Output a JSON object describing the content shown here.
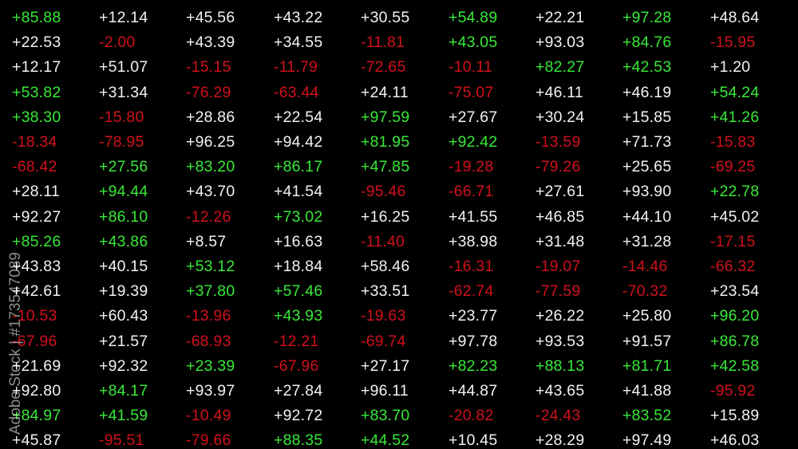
{
  "colors": {
    "white": "#f2f2f2",
    "green": "#38e838",
    "red": "#d0101c",
    "background": "#000000"
  },
  "watermark": "Adobe Stock | #173547089",
  "rows": [
    [
      {
        "value": "+85.88",
        "color": "green"
      },
      {
        "value": "+12.14",
        "color": "white"
      },
      {
        "value": "+45.56",
        "color": "white"
      },
      {
        "value": "+43.22",
        "color": "white"
      },
      {
        "value": "+30.55",
        "color": "white"
      },
      {
        "value": "+54.89",
        "color": "green"
      },
      {
        "value": "+22.21",
        "color": "white"
      },
      {
        "value": "+97.28",
        "color": "green"
      },
      {
        "value": "+48.64",
        "color": "white"
      }
    ],
    [
      {
        "value": "+22.53",
        "color": "white"
      },
      {
        "value": "-2.00",
        "color": "red"
      },
      {
        "value": "+43.39",
        "color": "white"
      },
      {
        "value": "+34.55",
        "color": "white"
      },
      {
        "value": "-11.81",
        "color": "red"
      },
      {
        "value": "+43.05",
        "color": "green"
      },
      {
        "value": "+93.03",
        "color": "white"
      },
      {
        "value": "+84.76",
        "color": "green"
      },
      {
        "value": "-15.95",
        "color": "red"
      }
    ],
    [
      {
        "value": "+12.17",
        "color": "white"
      },
      {
        "value": "+51.07",
        "color": "white"
      },
      {
        "value": "-15.15",
        "color": "red"
      },
      {
        "value": "-11.79",
        "color": "red"
      },
      {
        "value": "-72.65",
        "color": "red"
      },
      {
        "value": "-10.11",
        "color": "red"
      },
      {
        "value": "+82.27",
        "color": "green"
      },
      {
        "value": "+42.53",
        "color": "green"
      },
      {
        "value": "+1.20",
        "color": "white"
      }
    ],
    [
      {
        "value": "+53.82",
        "color": "green"
      },
      {
        "value": "+31.34",
        "color": "white"
      },
      {
        "value": "-76.29",
        "color": "red"
      },
      {
        "value": "-63.44",
        "color": "red"
      },
      {
        "value": "+24.11",
        "color": "white"
      },
      {
        "value": "-75.07",
        "color": "red"
      },
      {
        "value": "+46.11",
        "color": "white"
      },
      {
        "value": "+46.19",
        "color": "white"
      },
      {
        "value": "+54.24",
        "color": "green"
      }
    ],
    [
      {
        "value": "+38.30",
        "color": "green"
      },
      {
        "value": "-15.80",
        "color": "red"
      },
      {
        "value": "+28.86",
        "color": "white"
      },
      {
        "value": "+22.54",
        "color": "white"
      },
      {
        "value": "+97.59",
        "color": "green"
      },
      {
        "value": "+27.67",
        "color": "white"
      },
      {
        "value": "+30.24",
        "color": "white"
      },
      {
        "value": "+15.85",
        "color": "white"
      },
      {
        "value": "+41.26",
        "color": "green"
      }
    ],
    [
      {
        "value": "-18.34",
        "color": "red"
      },
      {
        "value": "-78.95",
        "color": "red"
      },
      {
        "value": "+96.25",
        "color": "white"
      },
      {
        "value": "+94.42",
        "color": "white"
      },
      {
        "value": "+81.95",
        "color": "green"
      },
      {
        "value": "+92.42",
        "color": "green"
      },
      {
        "value": "-13.59",
        "color": "red"
      },
      {
        "value": "+71.73",
        "color": "white"
      },
      {
        "value": "-15.83",
        "color": "red"
      }
    ],
    [
      {
        "value": "-68.42",
        "color": "red"
      },
      {
        "value": "+27.56",
        "color": "green"
      },
      {
        "value": "+83.20",
        "color": "green"
      },
      {
        "value": "+86.17",
        "color": "green"
      },
      {
        "value": "+47.85",
        "color": "green"
      },
      {
        "value": "-19.28",
        "color": "red"
      },
      {
        "value": "-79.26",
        "color": "red"
      },
      {
        "value": "+25.65",
        "color": "white"
      },
      {
        "value": "-69.25",
        "color": "red"
      }
    ],
    [
      {
        "value": "+28.11",
        "color": "white"
      },
      {
        "value": "+94.44",
        "color": "green"
      },
      {
        "value": "+43.70",
        "color": "white"
      },
      {
        "value": "+41.54",
        "color": "white"
      },
      {
        "value": "-95.46",
        "color": "red"
      },
      {
        "value": "-66.71",
        "color": "red"
      },
      {
        "value": "+27.61",
        "color": "white"
      },
      {
        "value": "+93.90",
        "color": "white"
      },
      {
        "value": "+22.78",
        "color": "green"
      }
    ],
    [
      {
        "value": "+92.27",
        "color": "white"
      },
      {
        "value": "+86.10",
        "color": "green"
      },
      {
        "value": "-12.26",
        "color": "red"
      },
      {
        "value": "+73.02",
        "color": "green"
      },
      {
        "value": "+16.25",
        "color": "white"
      },
      {
        "value": "+41.55",
        "color": "white"
      },
      {
        "value": "+46.85",
        "color": "white"
      },
      {
        "value": "+44.10",
        "color": "white"
      },
      {
        "value": "+45.02",
        "color": "white"
      }
    ],
    [
      {
        "value": "+85.26",
        "color": "green"
      },
      {
        "value": "+43.86",
        "color": "green"
      },
      {
        "value": "+8.57",
        "color": "white"
      },
      {
        "value": "+16.63",
        "color": "white"
      },
      {
        "value": "-11.40",
        "color": "red"
      },
      {
        "value": "+38.98",
        "color": "white"
      },
      {
        "value": "+31.48",
        "color": "white"
      },
      {
        "value": "+31.28",
        "color": "white"
      },
      {
        "value": "-17.15",
        "color": "red"
      }
    ],
    [
      {
        "value": "+43.83",
        "color": "white"
      },
      {
        "value": "+40.15",
        "color": "white"
      },
      {
        "value": "+53.12",
        "color": "green"
      },
      {
        "value": "+18.84",
        "color": "white"
      },
      {
        "value": "+58.46",
        "color": "white"
      },
      {
        "value": "-16.31",
        "color": "red"
      },
      {
        "value": "-19.07",
        "color": "red"
      },
      {
        "value": "-14.46",
        "color": "red"
      },
      {
        "value": "-66.32",
        "color": "red"
      }
    ],
    [
      {
        "value": "+42.61",
        "color": "white"
      },
      {
        "value": "+19.39",
        "color": "white"
      },
      {
        "value": "+37.80",
        "color": "green"
      },
      {
        "value": "+57.46",
        "color": "green"
      },
      {
        "value": "+33.51",
        "color": "white"
      },
      {
        "value": "-62.74",
        "color": "red"
      },
      {
        "value": "-77.59",
        "color": "red"
      },
      {
        "value": "-70.32",
        "color": "red"
      },
      {
        "value": "+23.54",
        "color": "white"
      }
    ],
    [
      {
        "value": "-10.53",
        "color": "red"
      },
      {
        "value": "+60.43",
        "color": "white"
      },
      {
        "value": "-13.96",
        "color": "red"
      },
      {
        "value": "+43.93",
        "color": "green"
      },
      {
        "value": "-19.63",
        "color": "red"
      },
      {
        "value": "+23.77",
        "color": "white"
      },
      {
        "value": "+26.22",
        "color": "white"
      },
      {
        "value": "+25.80",
        "color": "white"
      },
      {
        "value": "+96.20",
        "color": "green"
      }
    ],
    [
      {
        "value": "-67.96",
        "color": "red"
      },
      {
        "value": "+21.57",
        "color": "white"
      },
      {
        "value": "-68.93",
        "color": "red"
      },
      {
        "value": "-12.21",
        "color": "red"
      },
      {
        "value": "-69.74",
        "color": "red"
      },
      {
        "value": "+97.78",
        "color": "white"
      },
      {
        "value": "+93.53",
        "color": "white"
      },
      {
        "value": "+91.57",
        "color": "white"
      },
      {
        "value": "+86.78",
        "color": "green"
      }
    ],
    [
      {
        "value": "+21.69",
        "color": "white"
      },
      {
        "value": "+92.32",
        "color": "white"
      },
      {
        "value": "+23.39",
        "color": "green"
      },
      {
        "value": "-67.96",
        "color": "red"
      },
      {
        "value": "+27.17",
        "color": "white"
      },
      {
        "value": "+82.23",
        "color": "green"
      },
      {
        "value": "+88.13",
        "color": "green"
      },
      {
        "value": "+81.71",
        "color": "green"
      },
      {
        "value": "+42.58",
        "color": "green"
      }
    ],
    [
      {
        "value": "+92.80",
        "color": "white"
      },
      {
        "value": "+84.17",
        "color": "green"
      },
      {
        "value": "+93.97",
        "color": "white"
      },
      {
        "value": "+27.84",
        "color": "white"
      },
      {
        "value": "+96.11",
        "color": "white"
      },
      {
        "value": "+44.87",
        "color": "white"
      },
      {
        "value": "+43.65",
        "color": "white"
      },
      {
        "value": "+41.88",
        "color": "white"
      },
      {
        "value": "-95.92",
        "color": "red"
      }
    ],
    [
      {
        "value": "+84.97",
        "color": "green"
      },
      {
        "value": "+41.59",
        "color": "green"
      },
      {
        "value": "-10.49",
        "color": "red"
      },
      {
        "value": "+92.72",
        "color": "white"
      },
      {
        "value": "+83.70",
        "color": "green"
      },
      {
        "value": "-20.82",
        "color": "red"
      },
      {
        "value": "-24.43",
        "color": "red"
      },
      {
        "value": "+83.52",
        "color": "green"
      },
      {
        "value": "+15.89",
        "color": "white"
      }
    ],
    [
      {
        "value": "+45.87",
        "color": "white"
      },
      {
        "value": "-95.51",
        "color": "red"
      },
      {
        "value": "-79.66",
        "color": "red"
      },
      {
        "value": "+88.35",
        "color": "green"
      },
      {
        "value": "+44.52",
        "color": "green"
      },
      {
        "value": "+10.45",
        "color": "white"
      },
      {
        "value": "+28.29",
        "color": "white"
      },
      {
        "value": "+97.49",
        "color": "white"
      },
      {
        "value": "+46.03",
        "color": "white"
      }
    ]
  ]
}
